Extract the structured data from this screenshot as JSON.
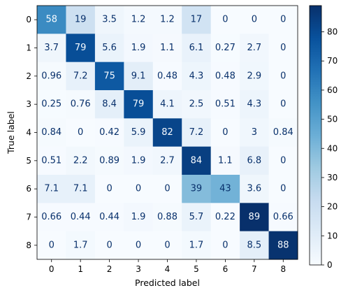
{
  "chart_data": {
    "type": "heatmap",
    "title": "",
    "xlabel": "Predicted label",
    "ylabel": "True label",
    "x_categories": [
      "0",
      "1",
      "2",
      "3",
      "4",
      "5",
      "6",
      "7",
      "8"
    ],
    "y_categories": [
      "0",
      "1",
      "2",
      "3",
      "4",
      "5",
      "6",
      "7",
      "8"
    ],
    "values": [
      [
        58,
        19,
        3.5,
        1.2,
        1.2,
        17,
        0,
        0,
        0
      ],
      [
        3.7,
        79,
        5.6,
        1.9,
        1.1,
        6.1,
        0.27,
        2.7,
        0
      ],
      [
        0.96,
        7.2,
        75,
        9.1,
        0.48,
        4.3,
        0.48,
        2.9,
        0
      ],
      [
        0.25,
        0.76,
        8.4,
        79,
        4.1,
        2.5,
        0.51,
        4.3,
        0
      ],
      [
        0.84,
        0,
        0.42,
        5.9,
        82,
        7.2,
        0,
        3,
        0.84
      ],
      [
        0.51,
        2.2,
        0.89,
        1.9,
        2.7,
        84,
        1.1,
        6.8,
        0
      ],
      [
        7.1,
        7.1,
        0,
        0,
        0,
        39,
        43,
        3.6,
        0
      ],
      [
        0.66,
        0.44,
        0.44,
        1.9,
        0.88,
        5.7,
        0.22,
        89,
        0.66
      ],
      [
        0,
        1.7,
        0,
        0,
        0,
        1.7,
        0,
        8.5,
        88
      ]
    ],
    "labels": [
      [
        "58",
        "19",
        "3.5",
        "1.2",
        "1.2",
        "17",
        "0",
        "0",
        "0"
      ],
      [
        "3.7",
        "79",
        "5.6",
        "1.9",
        "1.1",
        "6.1",
        "0.27",
        "2.7",
        "0"
      ],
      [
        "0.96",
        "7.2",
        "75",
        "9.1",
        "0.48",
        "4.3",
        "0.48",
        "2.9",
        "0"
      ],
      [
        "0.25",
        "0.76",
        "8.4",
        "79",
        "4.1",
        "2.5",
        "0.51",
        "4.3",
        "0"
      ],
      [
        "0.84",
        "0",
        "0.42",
        "5.9",
        "82",
        "7.2",
        "0",
        "3",
        "0.84"
      ],
      [
        "0.51",
        "2.2",
        "0.89",
        "1.9",
        "2.7",
        "84",
        "1.1",
        "6.8",
        "0"
      ],
      [
        "7.1",
        "7.1",
        "0",
        "0",
        "0",
        "39",
        "43",
        "3.6",
        "0"
      ],
      [
        "0.66",
        "0.44",
        "0.44",
        "1.9",
        "0.88",
        "5.7",
        "0.22",
        "89",
        "0.66"
      ],
      [
        "0",
        "1.7",
        "0",
        "0",
        "0",
        "1.7",
        "0",
        "8.5",
        "88"
      ]
    ],
    "colormap": "Blues",
    "vmin": 0,
    "vmax": 89,
    "colorbar_ticks": [
      0,
      10,
      20,
      30,
      40,
      50,
      60,
      70,
      80
    ],
    "colorbar_tick_labels": [
      "0",
      "10",
      "20",
      "30",
      "40",
      "50",
      "60",
      "70",
      "80"
    ],
    "grid": false,
    "legend": "colorbar-right"
  }
}
